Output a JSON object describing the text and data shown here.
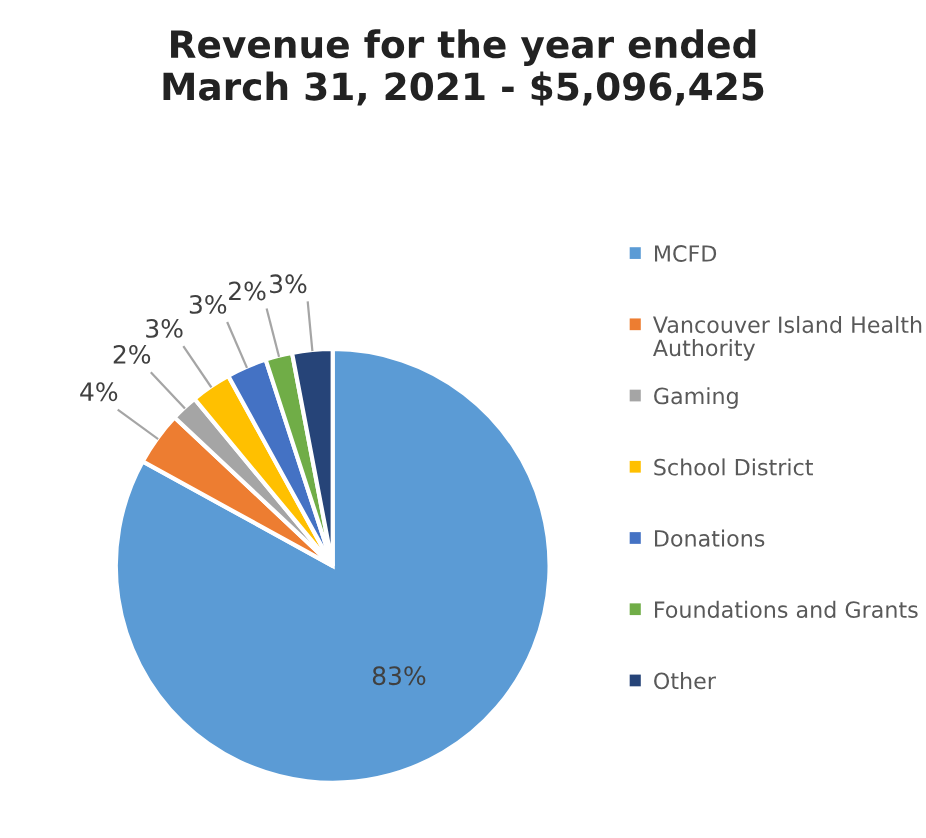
{
  "chart_data": {
    "type": "pie",
    "title": "Revenue for the year ended March 31, 2021 - $5,096,425",
    "categories": [
      "MCFD",
      "Vancouver Island Health Authority",
      "Gaming",
      "School District",
      "Donations",
      "Foundations and Grants",
      "Other"
    ],
    "values": [
      83,
      4,
      2,
      3,
      3,
      2,
      3
    ],
    "colors": [
      "#5b9bd5",
      "#ed7d31",
      "#a5a5a5",
      "#ffc000",
      "#4472c4",
      "#70ad47",
      "#264478"
    ],
    "value_labels": [
      "83%",
      "4%",
      "2%",
      "3%",
      "3%",
      "2%",
      "3%"
    ],
    "legend": "right"
  }
}
